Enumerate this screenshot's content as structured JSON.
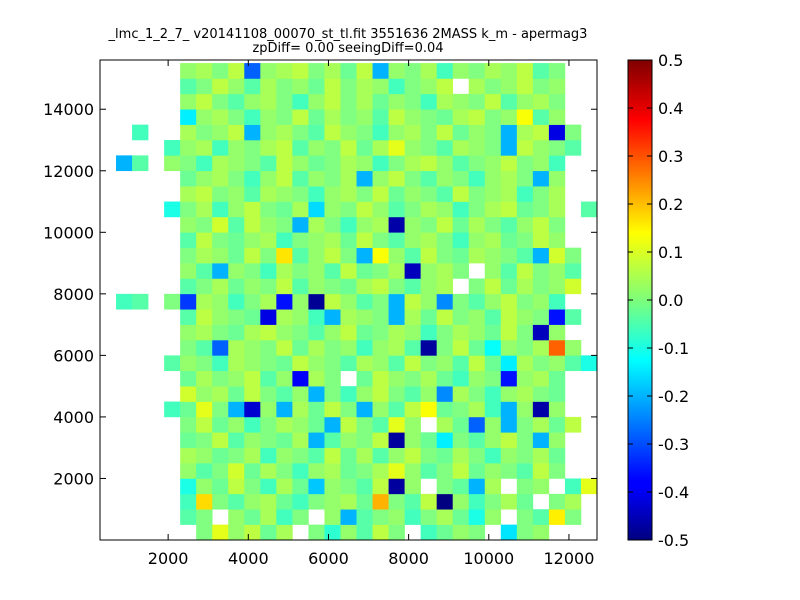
{
  "chart_data": {
    "type": "heatmap",
    "title_lines": [
      "_lmc_1_2_7_ v20141108_00070_st_tl.fit 3551636 2MASS k_m - apermag3",
      "zpDiff= 0.00 seeingDiff=0.04"
    ],
    "xlabel": "",
    "ylabel": "",
    "xlim": [
      300,
      12700
    ],
    "ylim": [
      0,
      15600
    ],
    "x_ticks": [
      "2000",
      "4000",
      "6000",
      "8000",
      "10000",
      "12000"
    ],
    "x_tick_values": [
      2000,
      4000,
      6000,
      8000,
      10000,
      12000
    ],
    "y_ticks": [
      "2000",
      "4000",
      "6000",
      "8000",
      "10000",
      "12000",
      "14000"
    ],
    "y_tick_values": [
      2000,
      4000,
      6000,
      8000,
      10000,
      12000,
      14000
    ],
    "colorbar": {
      "vmin": -0.5,
      "vmax": 0.5,
      "colormap": "jet",
      "ticks": [
        "-0.5",
        "-0.4",
        "-0.3",
        "-0.2",
        "-0.1",
        "0.0",
        "0.1",
        "0.2",
        "0.3",
        "0.4",
        "0.5"
      ],
      "tick_values": [
        -0.5,
        -0.4,
        -0.3,
        -0.2,
        -0.1,
        0.0,
        0.1,
        0.2,
        0.3,
        0.4,
        0.5
      ]
    },
    "grid": {
      "x_start": 300,
      "x_step": 400,
      "y_start": 0,
      "y_step": 500,
      "columns": 31,
      "rows": 31
    },
    "cells": [
      [
        null,
        null,
        null,
        null,
        null,
        null,
        0.0,
        0.1,
        0.02,
        0.06,
        -0.02,
        0.04,
        null,
        0.0,
        -0.08,
        0.02,
        -0.04,
        0.06,
        0.0,
        null,
        -0.06,
        -0.02,
        0.02,
        0.0,
        null,
        -0.15,
        0.0,
        0.02,
        null,
        null,
        null
      ],
      [
        null,
        null,
        null,
        null,
        null,
        -0.04,
        0.0,
        null,
        0.02,
        -0.02,
        0.04,
        -0.06,
        0.0,
        null,
        0.02,
        -0.2,
        -0.04,
        0.0,
        0.02,
        -0.06,
        0.0,
        0.04,
        -0.02,
        -0.1,
        0.02,
        null,
        0.0,
        -0.04,
        0.14,
        0.0,
        null
      ],
      [
        null,
        null,
        null,
        null,
        null,
        -0.06,
        0.16,
        0.0,
        -0.04,
        0.02,
        0.04,
        -0.02,
        -0.06,
        0.0,
        0.02,
        0.04,
        -0.02,
        0.2,
        0.0,
        -0.04,
        0.06,
        -0.5,
        0.02,
        -0.06,
        0.0,
        0.04,
        -0.02,
        null,
        0.0,
        0.04,
        null
      ],
      [
        null,
        null,
        null,
        null,
        null,
        -0.1,
        0.02,
        -0.02,
        0.06,
        0.0,
        -0.06,
        0.04,
        -0.02,
        -0.18,
        0.02,
        0.0,
        -0.04,
        0.06,
        -0.47,
        0.02,
        null,
        0.0,
        -0.03,
        -0.2,
        0.04,
        null,
        0.0,
        0.02,
        null,
        -0.06,
        0.1
      ],
      [
        null,
        null,
        null,
        null,
        null,
        0.02,
        -0.04,
        0.0,
        0.08,
        -0.02,
        0.04,
        0.0,
        -0.06,
        0.02,
        0.04,
        -0.02,
        0.0,
        0.04,
        0.1,
        0.02,
        -0.04,
        0.0,
        0.06,
        -0.02,
        0.02,
        0.0,
        -0.04,
        0.06,
        0.0,
        null,
        null
      ],
      [
        null,
        null,
        null,
        null,
        null,
        0.04,
        0.02,
        -0.02,
        0.0,
        0.04,
        -0.06,
        0.02,
        0.0,
        -0.04,
        0.06,
        -0.02,
        0.04,
        -0.04,
        0.02,
        0.06,
        0.0,
        -0.02,
        0.04,
        0.0,
        -0.06,
        0.02,
        0.0,
        0.04,
        -0.02,
        null,
        null
      ],
      [
        null,
        null,
        null,
        null,
        null,
        -0.02,
        0.0,
        0.06,
        -0.04,
        0.02,
        0.0,
        -0.02,
        0.04,
        -0.2,
        -0.04,
        0.02,
        0.0,
        0.06,
        -0.47,
        0.02,
        -0.02,
        -0.14,
        0.0,
        -0.04,
        0.02,
        0.06,
        0.0,
        -0.2,
        0.02,
        null,
        null
      ],
      [
        null,
        null,
        null,
        null,
        null,
        0.0,
        0.06,
        -0.02,
        0.02,
        -0.06,
        0.0,
        0.04,
        0.02,
        -0.02,
        -0.2,
        0.06,
        0.0,
        -0.04,
        0.1,
        0.02,
        null,
        0.04,
        -0.02,
        -0.28,
        0.02,
        -0.2,
        0.0,
        0.04,
        -0.02,
        0.06,
        null
      ],
      [
        null,
        null,
        null,
        null,
        -0.06,
        -0.02,
        0.1,
        0.0,
        -0.2,
        -0.42,
        0.02,
        -0.2,
        0.04,
        -0.02,
        0.06,
        0.0,
        -0.2,
        0.02,
        -0.04,
        0.06,
        0.12,
        -0.02,
        0.0,
        0.04,
        -0.06,
        -0.2,
        0.02,
        -0.46,
        0.02,
        null,
        null
      ],
      [
        null,
        null,
        null,
        null,
        null,
        0.08,
        0.02,
        0.04,
        -0.02,
        0.06,
        0.0,
        -0.04,
        0.02,
        -0.2,
        0.0,
        -0.06,
        0.02,
        0.06,
        0.0,
        -0.04,
        0.02,
        -0.24,
        0.04,
        0.0,
        -0.06,
        0.02,
        0.04,
        0.0,
        -0.02,
        null,
        null
      ],
      [
        null,
        null,
        null,
        null,
        null,
        -0.02,
        0.04,
        0.0,
        0.02,
        0.06,
        -0.04,
        0.02,
        -0.38,
        0.04,
        0.0,
        null,
        -0.02,
        0.06,
        0.02,
        0.0,
        0.04,
        -0.02,
        -0.06,
        0.02,
        0.0,
        -0.36,
        0.02,
        0.04,
        -0.02,
        null,
        null
      ],
      [
        null,
        null,
        null,
        null,
        -0.04,
        0.02,
        0.0,
        -0.06,
        0.04,
        0.02,
        0.0,
        -0.02,
        0.06,
        0.02,
        0.0,
        -0.04,
        0.04,
        0.02,
        -0.04,
        0.06,
        0.0,
        0.02,
        -0.04,
        0.06,
        -0.02,
        -0.14,
        0.04,
        0.0,
        0.02,
        -0.04,
        -0.1
      ],
      [
        null,
        null,
        null,
        null,
        null,
        0.0,
        -0.04,
        -0.28,
        0.04,
        0.02,
        0.0,
        0.06,
        -0.02,
        0.04,
        0.0,
        0.02,
        -0.06,
        0.02,
        0.04,
        -0.04,
        -0.47,
        0.0,
        0.06,
        -0.02,
        -0.12,
        0.02,
        0.0,
        0.04,
        0.28,
        0.02,
        null
      ],
      [
        null,
        null,
        null,
        null,
        null,
        0.02,
        0.04,
        0.0,
        -0.02,
        0.04,
        0.06,
        0.02,
        0.0,
        -0.04,
        0.02,
        0.06,
        -0.02,
        0.0,
        0.04,
        0.02,
        -0.06,
        0.0,
        0.04,
        0.02,
        -0.02,
        0.06,
        0.0,
        -0.44,
        0.02,
        null,
        null
      ],
      [
        null,
        null,
        null,
        null,
        null,
        -0.04,
        0.06,
        0.02,
        0.0,
        -0.02,
        -0.4,
        0.04,
        0.02,
        -0.06,
        -0.2,
        0.04,
        0.02,
        0.0,
        -0.2,
        0.04,
        -0.02,
        0.06,
        0.0,
        0.02,
        -0.04,
        0.06,
        0.02,
        0.0,
        -0.36,
        -0.04,
        null
      ],
      [
        null,
        -0.06,
        -0.04,
        null,
        0.0,
        -0.32,
        0.04,
        0.02,
        -0.06,
        0.0,
        0.04,
        -0.36,
        0.02,
        -0.48,
        0.06,
        0.02,
        -0.04,
        0.0,
        -0.2,
        0.06,
        0.02,
        -0.24,
        0.0,
        -0.04,
        0.02,
        0.06,
        0.0,
        0.02,
        -0.06,
        null,
        null
      ],
      [
        null,
        null,
        null,
        null,
        null,
        -0.04,
        0.0,
        0.04,
        -0.02,
        0.02,
        0.0,
        0.06,
        -0.04,
        0.02,
        0.0,
        -0.02,
        0.04,
        0.06,
        0.0,
        -0.04,
        0.02,
        0.04,
        null,
        0.0,
        0.06,
        -0.02,
        0.04,
        0.0,
        0.02,
        0.08,
        null
      ],
      [
        null,
        null,
        null,
        null,
        null,
        0.02,
        -0.04,
        -0.2,
        0.02,
        0.0,
        -0.06,
        0.04,
        0.0,
        0.02,
        -0.04,
        0.06,
        -0.02,
        0.0,
        0.04,
        -0.44,
        0.02,
        0.04,
        0.0,
        null,
        0.02,
        -0.04,
        0.06,
        0.0,
        0.02,
        -0.04,
        null
      ],
      [
        null,
        null,
        null,
        null,
        null,
        0.0,
        0.04,
        0.02,
        -0.02,
        0.06,
        0.0,
        0.15,
        -0.04,
        0.02,
        0.06,
        0.0,
        -0.2,
        0.12,
        0.02,
        -0.04,
        0.06,
        0.0,
        -0.02,
        0.04,
        0.02,
        0.0,
        -0.04,
        -0.2,
        0.08,
        0.0,
        null
      ],
      [
        null,
        null,
        null,
        null,
        null,
        -0.04,
        0.06,
        0.0,
        -0.02,
        0.02,
        0.04,
        -0.06,
        0.0,
        0.02,
        0.04,
        -0.02,
        0.06,
        0.0,
        -0.04,
        0.02,
        0.04,
        0.0,
        -0.06,
        0.02,
        0.04,
        -0.02,
        0.0,
        0.06,
        0.02,
        null,
        null
      ],
      [
        null,
        null,
        null,
        null,
        null,
        0.02,
        0.0,
        0.08,
        -0.04,
        0.06,
        0.02,
        0.0,
        -0.2,
        0.04,
        0.0,
        -0.06,
        0.02,
        0.04,
        -0.46,
        0.02,
        0.0,
        0.06,
        -0.02,
        0.04,
        0.0,
        -0.04,
        0.02,
        0.06,
        0.0,
        null,
        null
      ],
      [
        null,
        null,
        null,
        null,
        -0.1,
        0.0,
        0.04,
        -0.06,
        0.02,
        0.06,
        0.0,
        -0.02,
        0.04,
        -0.16,
        0.02,
        0.0,
        0.06,
        0.02,
        -0.04,
        0.0,
        0.04,
        0.02,
        -0.06,
        0.0,
        0.04,
        0.06,
        -0.02,
        0.0,
        0.04,
        null,
        -0.04
      ],
      [
        null,
        null,
        null,
        null,
        null,
        0.04,
        0.06,
        0.0,
        0.02,
        -0.04,
        0.04,
        0.02,
        0.0,
        -0.06,
        0.02,
        0.04,
        0.0,
        0.06,
        -0.02,
        0.02,
        0.0,
        -0.04,
        0.06,
        0.0,
        0.02,
        0.04,
        -0.06,
        0.0,
        0.04,
        null,
        null
      ],
      [
        null,
        null,
        null,
        null,
        null,
        -0.02,
        0.02,
        0.04,
        0.0,
        -0.06,
        0.02,
        0.06,
        -0.04,
        0.02,
        0.0,
        0.04,
        -0.2,
        0.02,
        0.06,
        0.0,
        -0.04,
        0.02,
        0.0,
        -0.06,
        0.02,
        0.04,
        0.0,
        -0.2,
        0.02,
        null,
        null
      ],
      [
        null,
        -0.2,
        -0.04,
        null,
        0.02,
        0.0,
        -0.06,
        0.04,
        0.02,
        0.0,
        -0.04,
        0.06,
        0.02,
        -0.02,
        0.0,
        0.04,
        0.02,
        -0.06,
        0.0,
        0.04,
        0.06,
        0.02,
        -0.04,
        0.0,
        0.02,
        0.06,
        0.0,
        0.02,
        -0.06,
        null,
        null
      ],
      [
        null,
        null,
        null,
        null,
        -0.06,
        0.02,
        0.04,
        -0.06,
        0.02,
        0.0,
        0.04,
        0.06,
        -0.04,
        0.02,
        0.0,
        0.06,
        -0.02,
        0.04,
        0.1,
        0.02,
        0.0,
        -0.04,
        0.04,
        0.02,
        0.0,
        -0.2,
        0.06,
        0.02,
        0.0,
        -0.04,
        null
      ],
      [
        null,
        null,
        -0.06,
        null,
        null,
        0.04,
        0.0,
        0.02,
        0.06,
        -0.2,
        0.02,
        0.04,
        0.0,
        -0.04,
        0.06,
        0.02,
        0.0,
        -0.06,
        0.02,
        0.04,
        0.0,
        0.06,
        -0.02,
        0.02,
        0.0,
        -0.2,
        0.04,
        0.06,
        -0.4,
        0.0,
        null
      ],
      [
        null,
        null,
        null,
        null,
        null,
        -0.14,
        0.02,
        0.04,
        0.0,
        -0.06,
        0.02,
        0.0,
        0.06,
        -0.02,
        0.04,
        0.0,
        0.02,
        -0.04,
        0.06,
        0.02,
        0.0,
        -0.02,
        0.04,
        0.06,
        0.0,
        0.02,
        0.12,
        -0.04,
        0.02,
        null,
        null
      ],
      [
        null,
        null,
        null,
        null,
        null,
        0.02,
        0.06,
        0.0,
        -0.04,
        0.02,
        0.04,
        0.0,
        -0.06,
        0.02,
        0.06,
        0.0,
        0.04,
        -0.02,
        0.02,
        0.0,
        -0.06,
        0.04,
        0.02,
        0.0,
        0.06,
        -0.04,
        0.02,
        0.04,
        0.0,
        null,
        null
      ],
      [
        null,
        null,
        null,
        null,
        null,
        -0.04,
        0.0,
        0.06,
        0.02,
        -0.04,
        0.04,
        0.0,
        0.02,
        -0.02,
        0.06,
        0.0,
        0.04,
        0.02,
        -0.06,
        0.0,
        0.02,
        0.06,
        null,
        0.04,
        0.0,
        0.02,
        0.06,
        0.0,
        0.02,
        null,
        null
      ],
      [
        null,
        null,
        null,
        null,
        null,
        0.02,
        0.04,
        0.0,
        0.06,
        -0.28,
        0.02,
        0.04,
        0.06,
        0.0,
        0.04,
        -0.02,
        0.06,
        -0.2,
        0.02,
        0.0,
        0.04,
        -0.06,
        0.02,
        0.0,
        0.04,
        0.02,
        0.06,
        -0.04,
        0.0,
        null,
        null
      ]
    ]
  }
}
